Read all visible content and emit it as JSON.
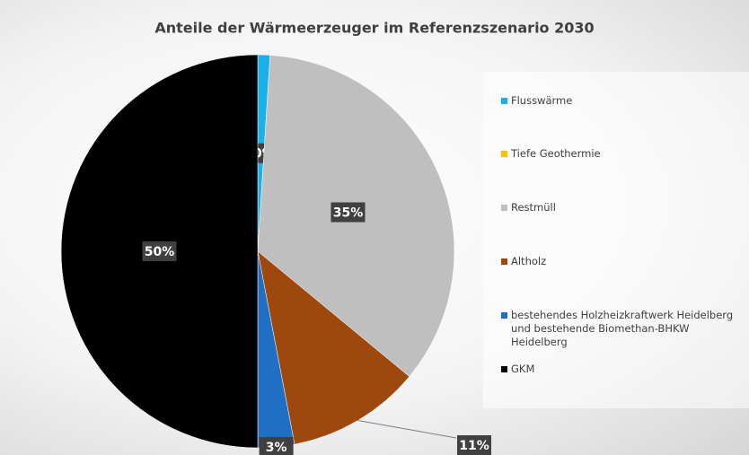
{
  "chart_data": {
    "type": "pie",
    "title": "Anteile der Wärmeerzeuger im Referenzszenario 2030",
    "categories": [
      "Flusswärme",
      "Tiefe Geothermie",
      "Restmüll",
      "Altholz",
      "bestehendes Holzheizkraftwerk Heidelberg und bestehende Biomethan-BHKW Heidelberg",
      "GKM"
    ],
    "values": [
      1,
      0,
      35,
      11,
      3,
      50
    ],
    "value_labels": [
      null,
      "0%",
      "35%",
      "11%",
      "3%",
      "50%"
    ],
    "colors": [
      "#1ab0e8",
      "#ffc000",
      "#bfbfbf",
      "#9e480e",
      "#1f6fc5",
      "#000000"
    ],
    "legend": "right"
  }
}
